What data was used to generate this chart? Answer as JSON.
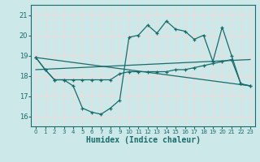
{
  "xlabel": "Humidex (Indice chaleur)",
  "background_color": "#cce8e8",
  "grid_color": "#f0d8d8",
  "line_color": "#1a6b6b",
  "xlim": [
    -0.5,
    23.5
  ],
  "ylim": [
    15.5,
    21.5
  ],
  "yticks": [
    16,
    17,
    18,
    19,
    20,
    21
  ],
  "xticks": [
    0,
    1,
    2,
    3,
    4,
    5,
    6,
    7,
    8,
    9,
    10,
    11,
    12,
    13,
    14,
    15,
    16,
    17,
    18,
    19,
    20,
    21,
    22,
    23
  ],
  "line1_x": [
    0,
    1,
    2,
    3,
    4,
    5,
    6,
    7,
    8,
    9,
    10,
    11,
    12,
    13,
    14,
    15,
    16,
    17,
    18,
    19,
    20,
    21,
    22,
    23
  ],
  "line1_y": [
    18.9,
    18.3,
    17.8,
    17.8,
    17.5,
    16.4,
    16.2,
    16.1,
    16.4,
    16.8,
    19.9,
    20.0,
    20.5,
    20.1,
    20.7,
    20.3,
    20.2,
    19.8,
    20.0,
    18.7,
    20.4,
    19.0,
    17.6,
    17.5
  ],
  "line2_x": [
    0,
    1,
    2,
    3,
    4,
    5,
    6,
    7,
    8,
    9,
    10,
    11,
    12,
    13,
    14,
    15,
    16,
    17,
    18,
    19,
    20,
    21,
    22,
    23
  ],
  "line2_y": [
    18.9,
    18.3,
    17.8,
    17.8,
    17.8,
    17.8,
    17.8,
    17.8,
    17.8,
    18.1,
    18.2,
    18.2,
    18.2,
    18.2,
    18.2,
    18.3,
    18.3,
    18.4,
    18.5,
    18.6,
    18.7,
    18.8,
    17.6,
    17.5
  ],
  "line3_x": [
    0,
    23
  ],
  "line3_y": [
    18.3,
    18.8
  ],
  "line4_x": [
    0,
    23
  ],
  "line4_y": [
    18.9,
    17.5
  ]
}
